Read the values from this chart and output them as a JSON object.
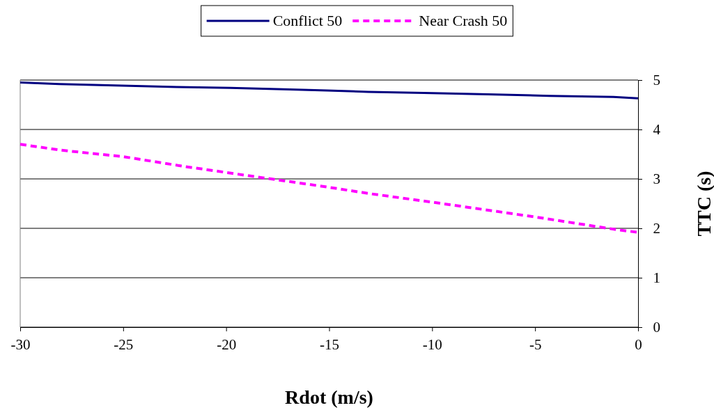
{
  "chart_data": {
    "type": "line",
    "xlabel": "Rdot (m/s)",
    "ylabel": "TTC (s)",
    "xlim": [
      -30,
      0
    ],
    "xticks": [
      -30,
      -25,
      -20,
      -15,
      -10,
      -5,
      0
    ],
    "ylim": [
      0,
      5
    ],
    "yticks": [
      0,
      1,
      2,
      3,
      4,
      5
    ],
    "grid": "y",
    "legend": "top",
    "marker": "none",
    "series": [
      {
        "name": "Conflict 50",
        "color": "#000080",
        "line_style": "solid",
        "x": [
          -30,
          -28.1,
          -25.4,
          -22.4,
          -19.8,
          -16.9,
          -15.1,
          -13.1,
          -10.4,
          -7.3,
          -4.3,
          -1.2,
          0
        ],
        "values": [
          4.95,
          4.92,
          4.89,
          4.86,
          4.84,
          4.81,
          4.79,
          4.76,
          4.74,
          4.71,
          4.68,
          4.66,
          4.63
        ]
      },
      {
        "name": "Near Crash 50",
        "color": "#ff00ff",
        "line_style": "dashed",
        "x": [
          -30,
          -28,
          -25,
          -22,
          -20,
          -17,
          -15,
          -13,
          -10,
          -7,
          -5,
          -3,
          -1,
          0
        ],
        "values": [
          3.7,
          3.58,
          3.45,
          3.25,
          3.13,
          2.95,
          2.83,
          2.7,
          2.53,
          2.35,
          2.23,
          2.1,
          1.97,
          1.92
        ]
      }
    ]
  }
}
